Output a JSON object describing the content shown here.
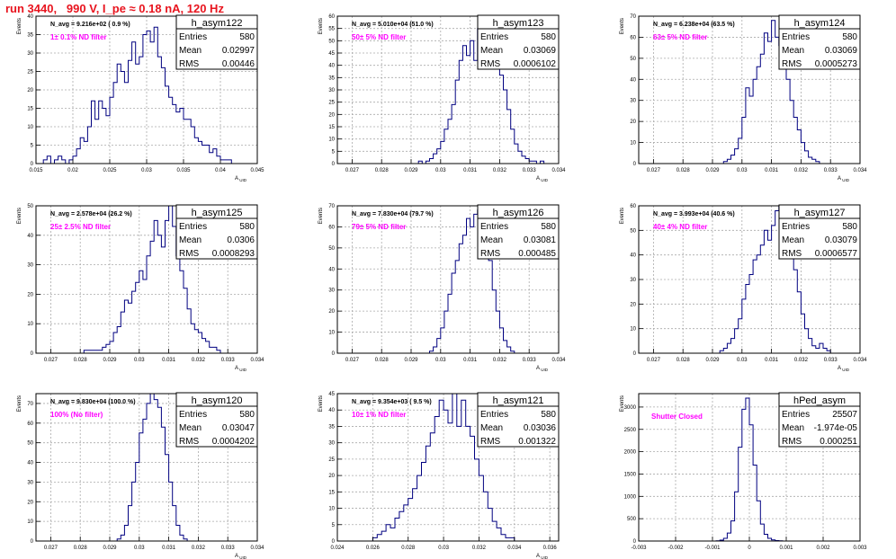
{
  "canvas_title": "run 3440,   990 V, I_pe ≈ 0.18 nA, 120 Hz",
  "colors": {
    "title": "#e8141e",
    "note": "#ff00ff",
    "line": "#000080",
    "grid": "#aaaaaa"
  },
  "chart_data": [
    {
      "type": "histogram",
      "name": "h_asym122",
      "navg": "N_avg = 9.216e+02 ( 0.9 %)",
      "filter": "1± 0.1% ND filter",
      "stats": {
        "Entries": "580",
        "Mean": "0.02997",
        "RMS": "0.00446"
      },
      "ylabel": "Events",
      "xlabel": "A_UID",
      "xlim": [
        0.015,
        0.045
      ],
      "ylim": [
        0,
        40
      ],
      "grid": true,
      "xticks": [
        0.015,
        0.02,
        0.025,
        0.03,
        0.035,
        0.04,
        0.045
      ],
      "xtick_labels": [
        "0.015",
        "0.02",
        "0.025",
        "0.03",
        "0.035",
        "0.04",
        "0.045"
      ],
      "yticks": [
        0,
        5,
        10,
        15,
        20,
        25,
        30,
        35,
        40
      ],
      "ytick_labels": [
        "0",
        "5",
        "10",
        "15",
        "20",
        "25",
        "30",
        "35",
        "40"
      ],
      "bin_low": 0.015,
      "bin_width": 0.0005,
      "counts": [
        0,
        0,
        1,
        2,
        0,
        1,
        2,
        1,
        0,
        1,
        2,
        4,
        7,
        6,
        10,
        17,
        12,
        17,
        15,
        13,
        18,
        22,
        27,
        25,
        22,
        28,
        33,
        27,
        29,
        35,
        36,
        33,
        37,
        29,
        26,
        21,
        18,
        16,
        14,
        15,
        12,
        12,
        10,
        7,
        6,
        5,
        5,
        3,
        4,
        2,
        1,
        1,
        1,
        0,
        0,
        0,
        0,
        0,
        0,
        0
      ]
    },
    {
      "type": "histogram",
      "name": "h_asym123",
      "navg": "N_avg = 5.010e+04 (51.0 %)",
      "filter": "50± 5% ND filter",
      "stats": {
        "Entries": "580",
        "Mean": "0.03069",
        "RMS": "0.0006102"
      },
      "ylabel": "Events",
      "xlabel": "A_UID",
      "xlim": [
        0.0265,
        0.034
      ],
      "ylim": [
        0,
        60
      ],
      "grid": true,
      "xticks": [
        0.027,
        0.028,
        0.029,
        0.03,
        0.031,
        0.032,
        0.033,
        0.034
      ],
      "xtick_labels": [
        "0.027",
        "0.028",
        "0.029",
        "0.03",
        "0.031",
        "0.032",
        "0.033",
        "0.034"
      ],
      "yticks": [
        0,
        5,
        10,
        15,
        20,
        25,
        30,
        35,
        40,
        45,
        50,
        55,
        60
      ],
      "ytick_labels": [
        "0",
        "5",
        "10",
        "15",
        "20",
        "25",
        "30",
        "35",
        "40",
        "45",
        "50",
        "55",
        "60"
      ],
      "bin_low": 0.0265,
      "bin_width": 0.000125,
      "counts": [
        0,
        0,
        0,
        0,
        0,
        0,
        0,
        0,
        0,
        0,
        0,
        0,
        0,
        0,
        0,
        0,
        0,
        0,
        0,
        0,
        0,
        0,
        1,
        0,
        1,
        2,
        4,
        6,
        9,
        14,
        18,
        24,
        34,
        42,
        48,
        44,
        50,
        42,
        55,
        52,
        54,
        58,
        50,
        44,
        36,
        30,
        22,
        14,
        8,
        5,
        3,
        2,
        1,
        1,
        0,
        1,
        0,
        0,
        0,
        0
      ]
    },
    {
      "type": "histogram",
      "name": "h_asym124",
      "navg": "N_avg = 6.238e+04 (63.5 %)",
      "filter": "63± 5% ND filter",
      "stats": {
        "Entries": "580",
        "Mean": "0.03069",
        "RMS": "0.0005273"
      },
      "ylabel": "Events",
      "xlabel": "A_UID",
      "xlim": [
        0.0265,
        0.034
      ],
      "ylim": [
        0,
        70
      ],
      "grid": true,
      "xticks": [
        0.027,
        0.028,
        0.029,
        0.03,
        0.031,
        0.032,
        0.033,
        0.034
      ],
      "xtick_labels": [
        "0.027",
        "0.028",
        "0.029",
        "0.03",
        "0.031",
        "0.032",
        "0.033",
        "0.034"
      ],
      "yticks": [
        0,
        10,
        20,
        30,
        40,
        50,
        60,
        70
      ],
      "ytick_labels": [
        "0",
        "10",
        "20",
        "30",
        "40",
        "50",
        "60",
        "70"
      ],
      "bin_low": 0.0265,
      "bin_width": 0.000125,
      "counts": [
        0,
        0,
        0,
        0,
        0,
        0,
        0,
        0,
        0,
        0,
        0,
        0,
        0,
        0,
        0,
        0,
        0,
        0,
        0,
        0,
        0,
        0,
        0,
        1,
        2,
        4,
        7,
        12,
        22,
        36,
        32,
        40,
        46,
        52,
        62,
        58,
        68,
        60,
        56,
        48,
        40,
        30,
        22,
        16,
        10,
        6,
        3,
        2,
        1,
        0,
        0,
        0,
        0,
        0,
        0,
        0,
        0,
        0,
        0,
        0
      ]
    },
    {
      "type": "histogram",
      "name": "h_asym125",
      "navg": "N_avg = 2.578e+04 (26.2 %)",
      "filter": "25± 2.5% ND filter",
      "stats": {
        "Entries": "580",
        "Mean": "0.0306",
        "RMS": "0.0008293"
      },
      "ylabel": "Events",
      "xlabel": "A_UID",
      "xlim": [
        0.0265,
        0.034
      ],
      "ylim": [
        0,
        50
      ],
      "grid": true,
      "xticks": [
        0.027,
        0.028,
        0.029,
        0.03,
        0.031,
        0.032,
        0.033,
        0.034
      ],
      "xtick_labels": [
        "0.027",
        "0.028",
        "0.029",
        "0.03",
        "0.031",
        "0.032",
        "0.033",
        "0.034"
      ],
      "yticks": [
        0,
        10,
        20,
        30,
        40,
        50
      ],
      "ytick_labels": [
        "0",
        "10",
        "20",
        "30",
        "40",
        "50"
      ],
      "bin_low": 0.0265,
      "bin_width": 0.000125,
      "counts": [
        0,
        0,
        0,
        0,
        0,
        0,
        0,
        0,
        0,
        0,
        0,
        0,
        0,
        1,
        1,
        1,
        1,
        1,
        2,
        3,
        4,
        7,
        9,
        14,
        18,
        17,
        21,
        24,
        28,
        25,
        33,
        38,
        45,
        40,
        36,
        45,
        50,
        43,
        33,
        28,
        22,
        15,
        10,
        8,
        7,
        5,
        4,
        2,
        2,
        1,
        0,
        0,
        0,
        0,
        0,
        0,
        0,
        0,
        0,
        0
      ]
    },
    {
      "type": "histogram",
      "name": "h_asym126",
      "navg": "N_avg = 7.830e+04 (79.7 %)",
      "filter": "79± 5% ND filter",
      "stats": {
        "Entries": "580",
        "Mean": "0.03081",
        "RMS": "0.000485"
      },
      "ylabel": "Events",
      "xlabel": "A_UID",
      "xlim": [
        0.0265,
        0.034
      ],
      "ylim": [
        0,
        70
      ],
      "grid": true,
      "xticks": [
        0.027,
        0.028,
        0.029,
        0.03,
        0.031,
        0.032,
        0.033,
        0.034
      ],
      "xtick_labels": [
        "0.027",
        "0.028",
        "0.029",
        "0.03",
        "0.031",
        "0.032",
        "0.033",
        "0.034"
      ],
      "yticks": [
        0,
        10,
        20,
        30,
        40,
        50,
        60,
        70
      ],
      "ytick_labels": [
        "0",
        "10",
        "20",
        "30",
        "40",
        "50",
        "60",
        "70"
      ],
      "bin_low": 0.0265,
      "bin_width": 0.000125,
      "counts": [
        0,
        0,
        0,
        0,
        0,
        0,
        0,
        0,
        0,
        0,
        0,
        0,
        0,
        0,
        0,
        0,
        0,
        0,
        0,
        0,
        0,
        0,
        0,
        0,
        0,
        1,
        3,
        7,
        12,
        20,
        28,
        38,
        44,
        52,
        56,
        64,
        60,
        66,
        68,
        62,
        58,
        44,
        30,
        20,
        12,
        6,
        3,
        1,
        0,
        0,
        0,
        0,
        0,
        0,
        0,
        0,
        0,
        0,
        0,
        0
      ]
    },
    {
      "type": "histogram",
      "name": "h_asym127",
      "navg": "N_avg = 3.993e+04 (40.6 %)",
      "filter": "40± 4% ND filter",
      "stats": {
        "Entries": "580",
        "Mean": "0.03079",
        "RMS": "0.0006577"
      },
      "ylabel": "Events",
      "xlabel": "A_UID",
      "xlim": [
        0.0265,
        0.034
      ],
      "ylim": [
        0,
        60
      ],
      "grid": true,
      "xticks": [
        0.027,
        0.028,
        0.029,
        0.03,
        0.031,
        0.032,
        0.033,
        0.034
      ],
      "xtick_labels": [
        "0.027",
        "0.028",
        "0.029",
        "0.03",
        "0.031",
        "0.032",
        "0.033",
        "0.034"
      ],
      "yticks": [
        0,
        10,
        20,
        30,
        40,
        50,
        60
      ],
      "ytick_labels": [
        "0",
        "10",
        "20",
        "30",
        "40",
        "50",
        "60"
      ],
      "bin_low": 0.0265,
      "bin_width": 0.000125,
      "counts": [
        0,
        0,
        0,
        0,
        0,
        0,
        0,
        0,
        0,
        0,
        0,
        0,
        0,
        0,
        0,
        0,
        0,
        0,
        0,
        0,
        0,
        0,
        1,
        2,
        4,
        6,
        10,
        14,
        22,
        28,
        32,
        38,
        40,
        44,
        50,
        46,
        52,
        58,
        62,
        56,
        48,
        42,
        34,
        25,
        16,
        10,
        6,
        3,
        2,
        4,
        2,
        1,
        0,
        0,
        0,
        0,
        0,
        0,
        0,
        0
      ]
    },
    {
      "type": "histogram",
      "name": "h_asym120",
      "navg": "N_avg = 9.830e+04 (100.0 %)",
      "filter": "100% (No filter)",
      "stats": {
        "Entries": "580",
        "Mean": "0.03047",
        "RMS": "0.0004202"
      },
      "ylabel": "Events",
      "xlabel": "A_UID",
      "xlim": [
        0.0265,
        0.034
      ],
      "ylim": [
        0,
        75
      ],
      "grid": true,
      "xticks": [
        0.027,
        0.028,
        0.029,
        0.03,
        0.031,
        0.032,
        0.033,
        0.034
      ],
      "xtick_labels": [
        "0.027",
        "0.028",
        "0.029",
        "0.03",
        "0.031",
        "0.032",
        "0.033",
        "0.034"
      ],
      "yticks": [
        0,
        10,
        20,
        30,
        40,
        50,
        60,
        70
      ],
      "ytick_labels": [
        "0",
        "10",
        "20",
        "30",
        "40",
        "50",
        "60",
        "70"
      ],
      "bin_low": 0.0265,
      "bin_width": 0.000125,
      "counts": [
        0,
        0,
        0,
        0,
        0,
        0,
        0,
        0,
        0,
        0,
        0,
        0,
        0,
        0,
        0,
        0,
        0,
        0,
        0,
        0,
        0,
        0,
        1,
        3,
        8,
        18,
        30,
        40,
        55,
        62,
        70,
        75,
        72,
        68,
        58,
        44,
        30,
        18,
        8,
        3,
        1,
        0,
        0,
        0,
        0,
        0,
        0,
        0,
        0,
        0,
        0,
        0,
        0,
        0,
        0,
        0,
        0,
        0,
        0,
        0
      ]
    },
    {
      "type": "histogram",
      "name": "h_asym121",
      "navg": "N_avg = 9.354e+03 ( 9.5 %)",
      "filter": "10± 1% ND filter",
      "stats": {
        "Entries": "580",
        "Mean": "0.03036",
        "RMS": "0.001322"
      },
      "ylabel": "Events",
      "xlabel": "A_UID",
      "xlim": [
        0.024,
        0.0365
      ],
      "ylim": [
        0,
        45
      ],
      "grid": true,
      "xticks": [
        0.024,
        0.026,
        0.028,
        0.03,
        0.032,
        0.034,
        0.036
      ],
      "xtick_labels": [
        "0.024",
        "0.026",
        "0.028",
        "0.03",
        "0.032",
        "0.034",
        "0.036"
      ],
      "yticks": [
        0,
        5,
        10,
        15,
        20,
        25,
        30,
        35,
        40,
        45
      ],
      "ytick_labels": [
        "0",
        "5",
        "10",
        "15",
        "20",
        "25",
        "30",
        "35",
        "40",
        "45"
      ],
      "bin_low": 0.024,
      "bin_width": 0.00025,
      "counts": [
        0,
        0,
        0,
        0,
        0,
        0,
        0,
        0,
        1,
        2,
        3,
        5,
        4,
        7,
        9,
        11,
        13,
        16,
        20,
        24,
        29,
        33,
        38,
        43,
        40,
        36,
        45,
        35,
        43,
        35,
        32,
        25,
        20,
        15,
        10,
        6,
        4,
        2,
        1,
        1,
        0,
        0,
        0,
        0,
        0,
        0,
        0,
        0,
        0,
        0
      ]
    },
    {
      "type": "histogram",
      "name": "hPed_asym",
      "navg": "",
      "filter": "Shutter Closed",
      "stats": {
        "Entries": "25507",
        "Mean": "-1.974e-05",
        "RMS": "0.000251"
      },
      "ylabel": "Events",
      "xlabel": "",
      "xlim": [
        -0.003,
        0.003
      ],
      "ylim": [
        0,
        3300
      ],
      "grid": true,
      "xticks": [
        -0.003,
        -0.002,
        -0.001,
        0,
        0.001,
        0.002,
        0.003
      ],
      "xtick_labels": [
        "-0.003",
        "-0.002",
        "-0.001",
        "0",
        "0.001",
        "0.002",
        "0.003"
      ],
      "yticks": [
        0,
        500,
        1000,
        1500,
        2000,
        2500,
        3000
      ],
      "ytick_labels": [
        "0",
        "500",
        "1000",
        "1500",
        "2000",
        "2500",
        "3000"
      ],
      "bin_low": -0.003,
      "bin_width": 0.0001,
      "counts": [
        0,
        0,
        0,
        0,
        0,
        0,
        0,
        0,
        0,
        0,
        0,
        0,
        0,
        0,
        0,
        0,
        0,
        0,
        0,
        0,
        0,
        5,
        20,
        60,
        180,
        450,
        1100,
        2100,
        2950,
        3200,
        2600,
        1700,
        900,
        380,
        150,
        60,
        25,
        10,
        5,
        0,
        0,
        0,
        0,
        0,
        0,
        0,
        0,
        0,
        0,
        0,
        0,
        0,
        0,
        0,
        0,
        0,
        0,
        0,
        0,
        0
      ]
    }
  ]
}
